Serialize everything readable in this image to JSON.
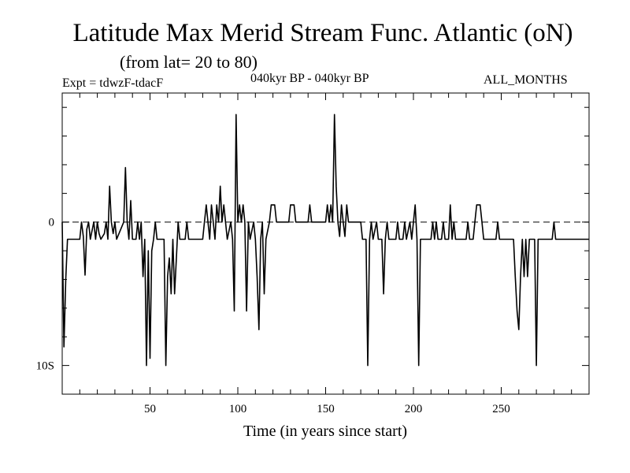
{
  "header": {
    "title": "Latitude Max Merid Stream Func. Atlantic (oN)",
    "subtitle": "(from lat= 20 to 80)",
    "experiment": "Expt = tdwzF-tdacF",
    "period": "040kyr BP - 040kyr BP",
    "months": "ALL_MONTHS"
  },
  "chart_data": {
    "type": "line",
    "title": "Latitude Max Merid Stream Func. Atlantic (oN)",
    "xlabel": "Time (in years since start)",
    "ylabel": "",
    "xlim": [
      0,
      300
    ],
    "ylim": [
      -12,
      9
    ],
    "x_ticks": [
      50,
      100,
      150,
      200,
      250
    ],
    "y_ticks": [
      {
        "value": 0,
        "label": "0"
      },
      {
        "value": -10,
        "label": "10S"
      }
    ],
    "zero_line": "dashed",
    "grid": false,
    "series": [
      {
        "values": [
          [
            0,
            0
          ],
          [
            1,
            -8.7
          ],
          [
            2,
            -4
          ],
          [
            3,
            -1.2
          ],
          [
            10,
            -1.2
          ],
          [
            11,
            0
          ],
          [
            12,
            -1
          ],
          [
            13,
            -3.7
          ],
          [
            14,
            -0.5
          ],
          [
            15,
            0
          ],
          [
            16,
            -1.2
          ],
          [
            18,
            0
          ],
          [
            19,
            -1.2
          ],
          [
            20,
            0
          ],
          [
            21,
            -0.8
          ],
          [
            22,
            -1.2
          ],
          [
            24,
            -0.8
          ],
          [
            25,
            0
          ],
          [
            26,
            -1.2
          ],
          [
            27,
            2.5
          ],
          [
            28,
            0
          ],
          [
            29,
            -0.8
          ],
          [
            30,
            0
          ],
          [
            31,
            -1.2
          ],
          [
            35,
            0
          ],
          [
            36,
            3.8
          ],
          [
            37,
            0
          ],
          [
            38,
            -1.2
          ],
          [
            39,
            1.5
          ],
          [
            40,
            -1.2
          ],
          [
            42,
            -1.2
          ],
          [
            43,
            0
          ],
          [
            44,
            -1.2
          ],
          [
            45,
            0
          ],
          [
            46,
            -3.8
          ],
          [
            47,
            -1.2
          ],
          [
            48,
            -10
          ],
          [
            49,
            -2
          ],
          [
            50,
            -9.5
          ],
          [
            51,
            -2
          ],
          [
            52,
            -1.2
          ],
          [
            53,
            0
          ],
          [
            54,
            -1.2
          ],
          [
            58,
            -1.2
          ],
          [
            59,
            -10
          ],
          [
            60,
            -3.8
          ],
          [
            61,
            -2.5
          ],
          [
            62,
            -5
          ],
          [
            63,
            -1.2
          ],
          [
            64,
            -5
          ],
          [
            65,
            -2.5
          ],
          [
            66,
            0
          ],
          [
            67,
            -1.2
          ],
          [
            70,
            -1.2
          ],
          [
            71,
            0
          ],
          [
            72,
            -1.2
          ],
          [
            80,
            -1.2
          ],
          [
            81,
            0
          ],
          [
            82,
            1.2
          ],
          [
            83,
            0
          ],
          [
            84,
            -1.2
          ],
          [
            85,
            1.2
          ],
          [
            86,
            0
          ],
          [
            87,
            -1.2
          ],
          [
            88,
            1.2
          ],
          [
            89,
            0
          ],
          [
            90,
            2.5
          ],
          [
            91,
            0
          ],
          [
            92,
            1.2
          ],
          [
            93,
            0
          ],
          [
            94,
            -1.2
          ],
          [
            96,
            0
          ],
          [
            97,
            -1.2
          ],
          [
            98,
            -6.2
          ],
          [
            99,
            7.5
          ],
          [
            100,
            0
          ],
          [
            101,
            1.2
          ],
          [
            102,
            0
          ],
          [
            103,
            1.2
          ],
          [
            104,
            0
          ],
          [
            105,
            -6.2
          ],
          [
            106,
            0
          ],
          [
            107,
            -1.2
          ],
          [
            109,
            0
          ],
          [
            110,
            -1.2
          ],
          [
            111,
            -3.8
          ],
          [
            112,
            -7.5
          ],
          [
            113,
            -1.2
          ],
          [
            114,
            0
          ],
          [
            115,
            -5
          ],
          [
            116,
            -1.2
          ],
          [
            118,
            0
          ],
          [
            119,
            1.2
          ],
          [
            121,
            1.2
          ],
          [
            122,
            0
          ],
          [
            129,
            0
          ],
          [
            130,
            1.2
          ],
          [
            132,
            1.2
          ],
          [
            133,
            0
          ],
          [
            140,
            0
          ],
          [
            141,
            1.2
          ],
          [
            142,
            0
          ],
          [
            150,
            0
          ],
          [
            151,
            1.2
          ],
          [
            152,
            0
          ],
          [
            153,
            1.2
          ],
          [
            154,
            0
          ],
          [
            155,
            7.5
          ],
          [
            156,
            2.5
          ],
          [
            157,
            0
          ],
          [
            158,
            -1
          ],
          [
            159,
            1.2
          ],
          [
            160,
            0
          ],
          [
            161,
            -1
          ],
          [
            162,
            1.2
          ],
          [
            163,
            0
          ],
          [
            170,
            0
          ],
          [
            171,
            -1.2
          ],
          [
            173,
            -1.2
          ],
          [
            174,
            -10
          ],
          [
            175,
            -1.2
          ],
          [
            176,
            0
          ],
          [
            177,
            -1.2
          ],
          [
            179,
            0
          ],
          [
            180,
            -1.2
          ],
          [
            182,
            -1.2
          ],
          [
            183,
            -5
          ],
          [
            184,
            -1.2
          ],
          [
            185,
            0
          ],
          [
            186,
            -1.2
          ],
          [
            190,
            -1.2
          ],
          [
            191,
            0
          ],
          [
            192,
            -1.2
          ],
          [
            194,
            -1.2
          ],
          [
            195,
            0
          ],
          [
            196,
            -1.2
          ],
          [
            198,
            0
          ],
          [
            199,
            -1.2
          ],
          [
            200,
            0
          ],
          [
            201,
            1.2
          ],
          [
            202,
            -1.2
          ],
          [
            203,
            -10
          ],
          [
            204,
            -1.2
          ],
          [
            210,
            -1.2
          ],
          [
            211,
            0
          ],
          [
            212,
            -1.2
          ],
          [
            213,
            0
          ],
          [
            214,
            -1.2
          ],
          [
            216,
            -1.2
          ],
          [
            217,
            0
          ],
          [
            218,
            -1.2
          ],
          [
            220,
            -1.2
          ],
          [
            221,
            1.2
          ],
          [
            222,
            -1.2
          ],
          [
            223,
            0
          ],
          [
            224,
            -1.2
          ],
          [
            230,
            -1.2
          ],
          [
            231,
            0
          ],
          [
            232,
            -1.2
          ],
          [
            234,
            -1.2
          ],
          [
            235,
            0
          ],
          [
            236,
            1.2
          ],
          [
            238,
            1.2
          ],
          [
            239,
            0
          ],
          [
            240,
            -1.2
          ],
          [
            247,
            -1.2
          ],
          [
            248,
            0
          ],
          [
            249,
            -1.2
          ],
          [
            257,
            -1.2
          ],
          [
            258,
            -3.8
          ],
          [
            259,
            -6.2
          ],
          [
            260,
            -7.5
          ],
          [
            261,
            -3.8
          ],
          [
            262,
            -1.2
          ],
          [
            263,
            -3.8
          ],
          [
            264,
            -1.2
          ],
          [
            265,
            -3.8
          ],
          [
            266,
            -1.2
          ],
          [
            269,
            -1.2
          ],
          [
            270,
            -10
          ],
          [
            271,
            -1.2
          ],
          [
            279,
            -1.2
          ],
          [
            280,
            0
          ],
          [
            281,
            -1.2
          ],
          [
            300,
            -1.2
          ]
        ]
      }
    ]
  }
}
